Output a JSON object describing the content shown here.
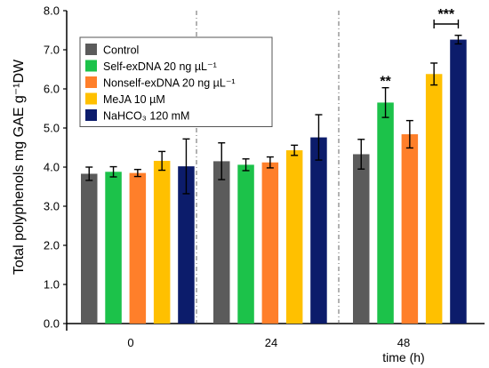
{
  "chart_data": {
    "type": "bar",
    "xlabel": "time (h)",
    "ylabel": "Total polyphenols  mg GAE g⁻¹DW",
    "ylim": [
      0,
      8
    ],
    "yticks": [
      "0.0",
      "1.0",
      "2.0",
      "3.0",
      "4.0",
      "5.0",
      "6.0",
      "7.0",
      "8.0"
    ],
    "categories": [
      "0",
      "24",
      "48"
    ],
    "grid": false,
    "legend_position": "top-left",
    "series": [
      {
        "name": "Control",
        "color": "#5b5b5b",
        "values": [
          3.83,
          4.15,
          4.33
        ],
        "errors": [
          0.17,
          0.47,
          0.38
        ]
      },
      {
        "name": "Self-exDNA 20 ng µL⁻¹",
        "color": "#1cc24a",
        "values": [
          3.88,
          4.06,
          5.65
        ],
        "errors": [
          0.13,
          0.15,
          0.38
        ]
      },
      {
        "name": "Nonself-exDNA 20 ng µL⁻¹",
        "color": "#ff7f2a",
        "values": [
          3.85,
          4.12,
          4.84
        ],
        "errors": [
          0.09,
          0.14,
          0.35
        ]
      },
      {
        "name": "MeJA 10 µM",
        "color": "#ffc000",
        "values": [
          4.16,
          4.43,
          6.38
        ],
        "errors": [
          0.24,
          0.13,
          0.28
        ]
      },
      {
        "name": "NaHCO₃ 120 mM",
        "color": "#0c1c6b",
        "values": [
          4.02,
          4.76,
          7.26
        ],
        "errors": [
          0.7,
          0.58,
          0.11
        ]
      }
    ],
    "annotations": [
      {
        "text": "**",
        "category": "48",
        "series": 1
      },
      {
        "text": "***",
        "category": "48",
        "series_range": [
          3,
          4
        ]
      }
    ]
  }
}
